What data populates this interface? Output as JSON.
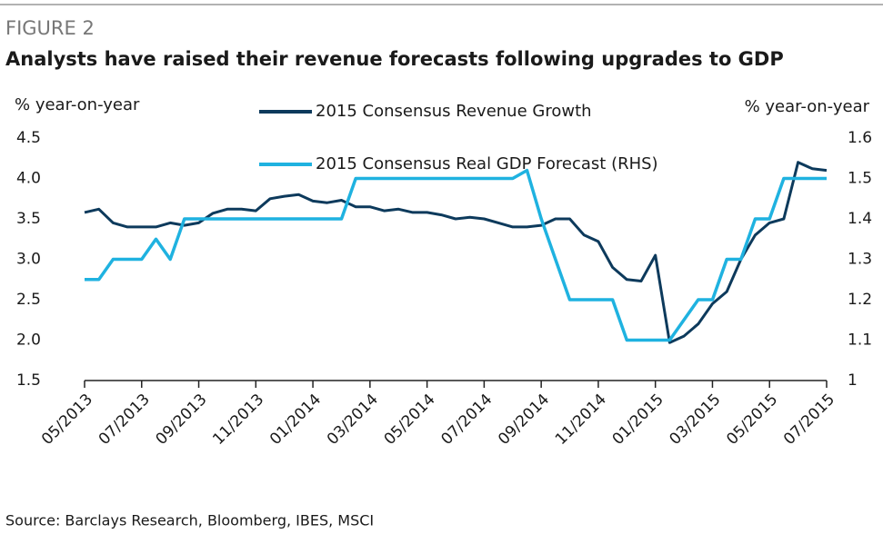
{
  "chart_data": {
    "type": "line",
    "figure_label": "FIGURE 2",
    "title": "Analysts have raised their revenue forecasts following upgrades to GDP",
    "ylabel": "% year-on-year",
    "y2label": "% year-on-year",
    "source": "Source: Barclays Research, Bloomberg, IBES, MSCI",
    "categories": [
      "05/2013",
      null,
      null,
      null,
      "07/2013",
      null,
      null,
      null,
      "09/2013",
      null,
      null,
      null,
      "11/2013",
      null,
      null,
      null,
      "01/2014",
      null,
      null,
      null,
      "03/2014",
      null,
      null,
      null,
      "05/2014",
      null,
      null,
      null,
      "07/2014",
      null,
      null,
      null,
      "09/2014",
      null,
      null,
      null,
      "11/2014",
      null,
      null,
      null,
      "01/2015",
      null,
      null,
      null,
      "03/2015",
      null,
      null,
      null,
      "05/2015",
      null,
      null,
      null,
      "07/2015"
    ],
    "series": [
      {
        "name": "2015 Consensus Revenue Growth",
        "color": "#0d3a5c",
        "axis": "y",
        "values": [
          3.58,
          3.62,
          3.45,
          3.4,
          3.4,
          3.4,
          3.45,
          3.42,
          3.45,
          3.57,
          3.62,
          3.62,
          3.6,
          3.75,
          3.78,
          3.8,
          3.72,
          3.7,
          3.73,
          3.65,
          3.65,
          3.6,
          3.62,
          3.58,
          3.58,
          3.55,
          3.5,
          3.52,
          3.5,
          3.45,
          3.4,
          3.4,
          3.42,
          3.5,
          3.5,
          3.3,
          3.22,
          2.9,
          2.75,
          2.73,
          3.05,
          1.97,
          2.05,
          2.2,
          2.45,
          2.6,
          3.0,
          3.3,
          3.45,
          3.5,
          4.2,
          4.12,
          4.1
        ]
      },
      {
        "name": "2015 Consensus Real GDP Forecast (RHS)",
        "color": "#1fb2e0",
        "axis": "y2",
        "values": [
          1.25,
          1.25,
          1.3,
          1.3,
          1.3,
          1.35,
          1.3,
          1.4,
          1.4,
          1.4,
          1.4,
          1.4,
          1.4,
          1.4,
          1.4,
          1.4,
          1.4,
          1.4,
          1.4,
          1.5,
          1.5,
          1.5,
          1.5,
          1.5,
          1.5,
          1.5,
          1.5,
          1.5,
          1.5,
          1.5,
          1.5,
          1.52,
          1.4,
          1.3,
          1.2,
          1.2,
          1.2,
          1.2,
          1.1,
          1.1,
          1.1,
          1.1,
          1.15,
          1.2,
          1.2,
          1.3,
          1.3,
          1.4,
          1.4,
          1.5,
          1.5,
          1.5,
          1.5
        ]
      }
    ],
    "ylim": [
      1.5,
      4.5
    ],
    "yticks": [
      1.5,
      {
        "value": 2,
        "label": "2.0"
      },
      2.5,
      {
        "value": 3,
        "label": "3.0"
      },
      3.5,
      {
        "value": 4,
        "label": "4.0"
      },
      4.5
    ],
    "y2lim": [
      1,
      1.6
    ],
    "y2ticks": [
      1,
      1.1,
      1.2,
      1.3,
      1.4,
      1.5,
      1.6
    ],
    "grid": false
  }
}
